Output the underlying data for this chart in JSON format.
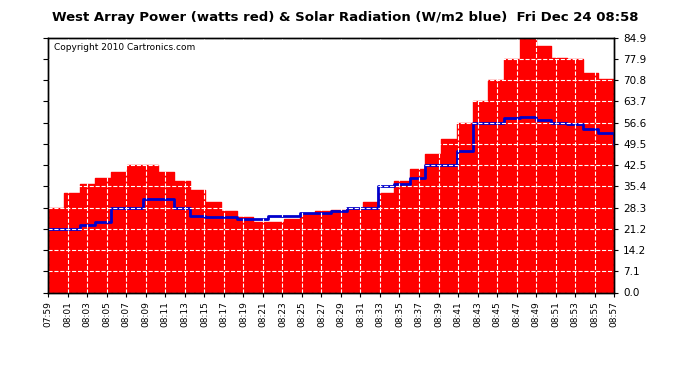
{
  "title": "West Array Power (watts red) & Solar Radiation (W/m2 blue)  Fri Dec 24 08:58",
  "copyright": "Copyright 2010 Cartronics.com",
  "yticks": [
    0.0,
    7.1,
    14.2,
    21.2,
    28.3,
    35.4,
    42.5,
    49.5,
    56.6,
    63.7,
    70.8,
    77.9,
    84.9
  ],
  "xtick_labels": [
    "07:59",
    "08:01",
    "08:03",
    "08:05",
    "08:07",
    "08:09",
    "08:11",
    "08:13",
    "08:15",
    "08:17",
    "08:19",
    "08:21",
    "08:23",
    "08:25",
    "08:27",
    "08:29",
    "08:31",
    "08:33",
    "08:35",
    "08:37",
    "08:39",
    "08:41",
    "08:43",
    "08:45",
    "08:47",
    "08:49",
    "08:51",
    "08:53",
    "08:55",
    "08:57"
  ],
  "ymax": 84.9,
  "ymin": 0.0,
  "bg_color": "#ffffff",
  "plot_bg_color": "#ffffff",
  "red_color": "#ff0000",
  "blue_color": "#0000cc",
  "power_data": [
    28.3,
    33.0,
    36.0,
    38.0,
    40.0,
    42.5,
    42.5,
    40.0,
    37.0,
    34.0,
    30.0,
    27.0,
    25.0,
    23.5,
    23.5,
    24.5,
    26.0,
    27.0,
    27.5,
    28.3,
    30.0,
    33.0,
    37.0,
    41.0,
    46.0,
    51.0,
    56.6,
    63.7,
    70.8,
    77.9,
    84.9,
    82.0,
    78.0,
    77.9,
    73.0,
    71.0,
    70.8
  ],
  "solar_data": [
    21.2,
    21.2,
    22.5,
    23.5,
    28.3,
    28.3,
    31.0,
    31.0,
    28.3,
    25.5,
    25.0,
    25.0,
    24.5,
    24.5,
    25.5,
    25.5,
    26.5,
    26.5,
    27.0,
    28.3,
    28.3,
    35.4,
    36.0,
    38.0,
    42.5,
    42.5,
    47.0,
    56.6,
    56.6,
    58.0,
    58.5,
    57.5,
    56.6,
    56.0,
    54.5,
    53.0,
    49.5
  ],
  "n_points": 37
}
